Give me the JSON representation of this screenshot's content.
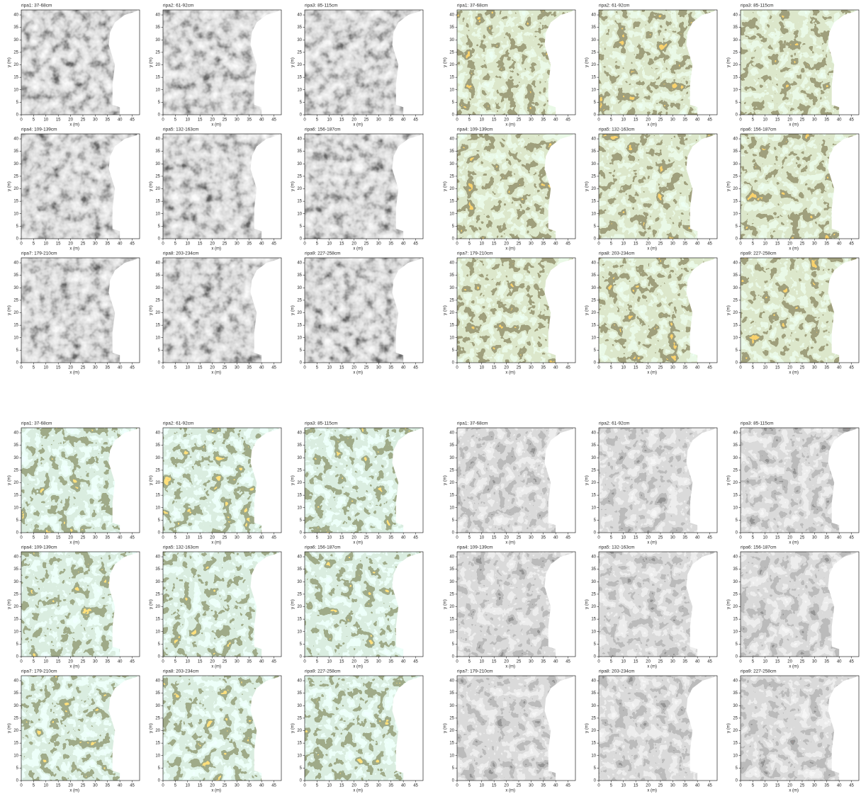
{
  "panel_titles": [
    "ripa1: 37-68cm",
    "ripa2: 61-92cm",
    "ripa3: 85-115cm",
    "ripa4: 109-139cm",
    "ripa5: 132-163cm",
    "ripa6: 156-187cm",
    "ripa7: 179-210cm",
    "ripa8: 203-234cm",
    "ripa9: 227-258cm"
  ],
  "x_label": "x (m)",
  "y_label": "y (m)",
  "xlim": [
    0,
    48
  ],
  "ylim": [
    0,
    42
  ],
  "xticks": [
    0,
    5,
    10,
    15,
    20,
    25,
    30,
    35,
    40,
    45
  ],
  "yticks": [
    0,
    5,
    10,
    15,
    20,
    25,
    30,
    35,
    40
  ]
}
